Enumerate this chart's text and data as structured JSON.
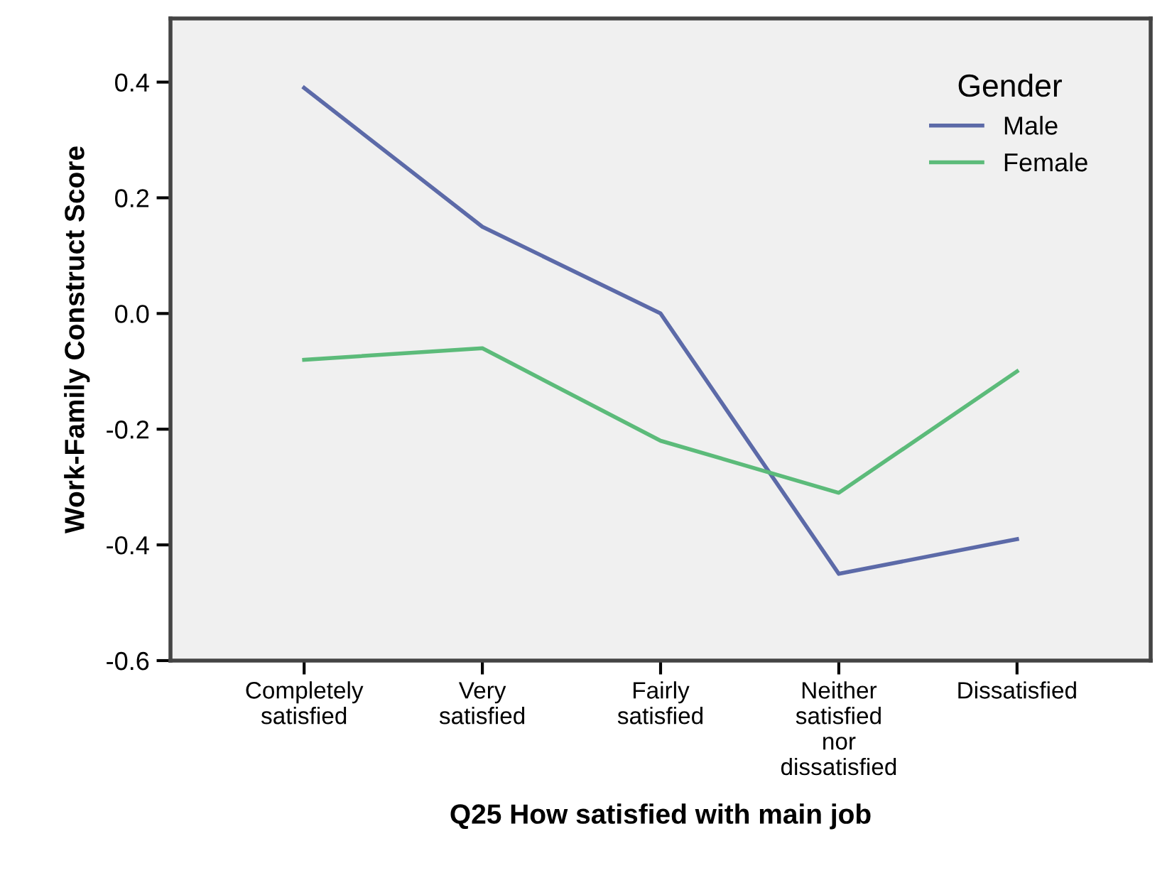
{
  "chart_data": {
    "type": "line",
    "xlabel": "Q25 How satisfied with main job",
    "ylabel": "Work-Family Construct Score",
    "legend_title": "Gender",
    "categories": [
      "Completely\nsatisfied",
      "Very\nsatisfied",
      "Fairly\nsatisfied",
      "Neither\nsatisfied\nnor\ndissatisfied",
      "Dissatisfied"
    ],
    "series": [
      {
        "name": "Male",
        "color": "#5c6aa8",
        "values": [
          0.39,
          0.15,
          0.0,
          -0.45,
          -0.39
        ]
      },
      {
        "name": "Female",
        "color": "#5cbb7a",
        "values": [
          -0.08,
          -0.06,
          -0.22,
          -0.31,
          -0.1
        ]
      }
    ],
    "ylim": [
      -0.6,
      0.51
    ],
    "yticks": [
      {
        "value": 0.4,
        "label": "0.4"
      },
      {
        "value": 0.2,
        "label": "0.2"
      },
      {
        "value": 0,
        "label": "0.0"
      },
      {
        "value": -0.2,
        "label": "-0.2"
      },
      {
        "value": -0.4,
        "label": "-0.4"
      },
      {
        "value": -0.6,
        "label": "-0.6"
      }
    ],
    "grid": false,
    "legend": "top right",
    "marker": "none",
    "line_style": "solid"
  }
}
